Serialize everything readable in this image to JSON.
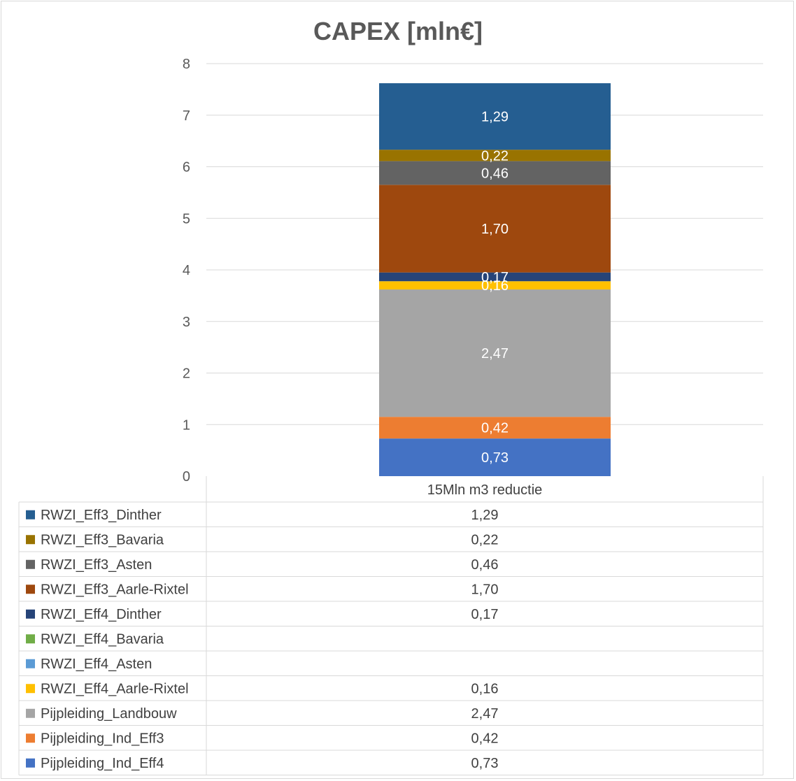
{
  "chart_data": {
    "type": "bar",
    "stacked": true,
    "title": "CAPEX [mln€]",
    "categories": [
      "15Mln m3 reductie"
    ],
    "ylim": [
      0,
      8
    ],
    "yticks": [
      "0",
      "1",
      "2",
      "3",
      "4",
      "5",
      "6",
      "7",
      "8"
    ],
    "grid": true,
    "legend_placement": "data-table-left",
    "series": [
      {
        "name": "Pijpleiding_Ind_Eff4",
        "values": [
          0.73
        ],
        "label": "0,73",
        "color": "#4472c4"
      },
      {
        "name": "Pijpleiding_Ind_Eff3",
        "values": [
          0.42
        ],
        "label": "0,42",
        "color": "#ed7d31"
      },
      {
        "name": "Pijpleiding_Landbouw",
        "values": [
          2.47
        ],
        "label": "2,47",
        "color": "#a5a5a5"
      },
      {
        "name": "RWZI_Eff4_Aarle-Rixtel",
        "values": [
          0.16
        ],
        "label": "0,16",
        "color": "#ffc000"
      },
      {
        "name": "RWZI_Eff4_Asten",
        "values": [
          null
        ],
        "label": "",
        "color": "#5b9bd5"
      },
      {
        "name": "RWZI_Eff4_Bavaria",
        "values": [
          null
        ],
        "label": "",
        "color": "#70ad47"
      },
      {
        "name": "RWZI_Eff4_Dinther",
        "values": [
          0.17
        ],
        "label": "0,17",
        "color": "#264478"
      },
      {
        "name": "RWZI_Eff3_Aarle-Rixtel",
        "values": [
          1.7
        ],
        "label": "1,70",
        "color": "#9e480e"
      },
      {
        "name": "RWZI_Eff3_Asten",
        "values": [
          0.46
        ],
        "label": "0,46",
        "color": "#636363"
      },
      {
        "name": "RWZI_Eff3_Bavaria",
        "values": [
          0.22
        ],
        "label": "0,22",
        "color": "#997300"
      },
      {
        "name": "RWZI_Eff3_Dinther",
        "values": [
          1.29
        ],
        "label": "1,29",
        "color": "#255e91"
      }
    ]
  }
}
